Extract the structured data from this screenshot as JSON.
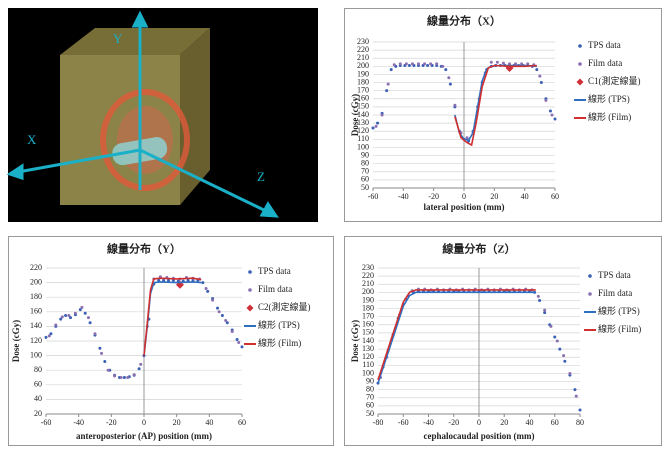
{
  "image_panel": {
    "axis_labels": {
      "y": "Y",
      "x": "X",
      "z": "Z"
    }
  },
  "chart_data": [
    {
      "type": "scatter",
      "title": "線量分布（X）",
      "x_label": "lateral position (mm)",
      "y_label": "Dose (cGy)",
      "xlim": [
        -60,
        60
      ],
      "xticks": [
        -60,
        -40,
        -20,
        0,
        20,
        40,
        60
      ],
      "ylim": [
        50,
        230
      ],
      "yticks": [
        50,
        60,
        70,
        80,
        90,
        100,
        110,
        120,
        130,
        140,
        150,
        160,
        170,
        180,
        190,
        200,
        210,
        220,
        230
      ],
      "grid": true,
      "legend": "right",
      "series": [
        {
          "name": "TPS data",
          "style": "dots",
          "color": "#3a5fb5",
          "x": [
            -60,
            -57,
            -54,
            -51,
            -48,
            -45,
            -42,
            -39,
            -36,
            -33,
            -30,
            -27,
            -24,
            -21,
            -18,
            -15,
            -12,
            -9,
            -6,
            -3,
            0,
            3,
            6,
            9,
            12,
            15,
            18,
            21,
            24,
            27,
            30,
            33,
            36,
            39,
            42,
            45,
            48,
            51,
            54,
            57,
            60
          ],
          "values": [
            124,
            130,
            142,
            170,
            196,
            200,
            201,
            201,
            201,
            201,
            201,
            201,
            201,
            201,
            201,
            200,
            196,
            178,
            150,
            120,
            110,
            108,
            120,
            150,
            180,
            196,
            200,
            201,
            201,
            201,
            201,
            201,
            201,
            201,
            201,
            200,
            196,
            180,
            160,
            145,
            135
          ]
        },
        {
          "name": "Film data",
          "style": "dots",
          "color": "#8a6fb0",
          "x": [
            -58,
            -54,
            -50,
            -46,
            -42,
            -38,
            -34,
            -30,
            -26,
            -22,
            -18,
            -14,
            -10,
            -6,
            -2,
            2,
            6,
            10,
            14,
            18,
            22,
            26,
            30,
            34,
            38,
            42,
            46,
            50,
            54,
            58
          ],
          "values": [
            126,
            140,
            178,
            202,
            203,
            203,
            203,
            203,
            203,
            203,
            203,
            200,
            186,
            152,
            118,
            112,
            118,
            160,
            192,
            205,
            205,
            204,
            203,
            203,
            203,
            203,
            202,
            188,
            158,
            140
          ]
        },
        {
          "name": "C1(測定線量)",
          "style": "diamond",
          "color": "#d0303a",
          "x": [
            30
          ],
          "values": [
            198
          ]
        },
        {
          "name": "線形 (TPS)",
          "style": "line",
          "color": "#2f6fc0",
          "x": [
            -6,
            -3,
            0,
            3,
            6,
            9,
            12,
            15,
            18,
            24,
            30,
            36,
            42,
            48
          ],
          "values": [
            140,
            118,
            110,
            109,
            118,
            150,
            182,
            197,
            200,
            201,
            201,
            201,
            201,
            200
          ]
        },
        {
          "name": "線形 (Film)",
          "style": "line",
          "color": "#d03030",
          "x": [
            -6,
            -2,
            2,
            5,
            8,
            12,
            16,
            20,
            30,
            40,
            48
          ],
          "values": [
            138,
            112,
            106,
            103,
            130,
            175,
            198,
            201,
            200,
            200,
            201
          ]
        }
      ]
    },
    {
      "type": "scatter",
      "title": "線量分布（Y）",
      "x_label": "anteroposterior (AP) position (mm)",
      "y_label": "Dose (cGy)",
      "xlim": [
        -60,
        60
      ],
      "xticks": [
        -60,
        -40,
        -20,
        0,
        20,
        40,
        60
      ],
      "ylim": [
        20,
        220
      ],
      "yticks": [
        20,
        40,
        60,
        80,
        100,
        120,
        140,
        160,
        180,
        200,
        220
      ],
      "grid": true,
      "legend": "right",
      "series": [
        {
          "name": "TPS data",
          "style": "dots",
          "color": "#3a5fb5",
          "x": [
            -60,
            -57,
            -54,
            -51,
            -48,
            -45,
            -42,
            -39,
            -36,
            -33,
            -30,
            -27,
            -24,
            -21,
            -18,
            -15,
            -12,
            -9,
            -6,
            -3,
            0,
            3,
            6,
            9,
            12,
            15,
            18,
            21,
            24,
            27,
            30,
            33,
            36,
            39,
            42,
            45,
            48,
            51,
            54,
            57,
            60
          ],
          "values": [
            125,
            130,
            140,
            150,
            155,
            152,
            156,
            163,
            158,
            145,
            128,
            110,
            92,
            80,
            73,
            70,
            70,
            71,
            73,
            82,
            100,
            150,
            198,
            203,
            203,
            203,
            203,
            202,
            202,
            203,
            203,
            203,
            200,
            188,
            178,
            165,
            155,
            145,
            135,
            122,
            112
          ]
        },
        {
          "name": "Film data",
          "style": "dots",
          "color": "#8a6fb0",
          "x": [
            -58,
            -54,
            -50,
            -46,
            -42,
            -38,
            -34,
            -30,
            -26,
            -22,
            -18,
            -14,
            -10,
            -6,
            -2,
            2,
            6,
            10,
            14,
            18,
            22,
            26,
            30,
            34,
            38,
            42,
            46,
            50,
            54,
            58
          ],
          "values": [
            127,
            142,
            153,
            155,
            158,
            166,
            152,
            130,
            103,
            80,
            72,
            70,
            70,
            74,
            88,
            140,
            205,
            208,
            207,
            206,
            205,
            207,
            206,
            205,
            192,
            176,
            160,
            148,
            133,
            118
          ]
        },
        {
          "name": "C2(測定線量)",
          "style": "diamond",
          "color": "#d0303a",
          "x": [
            22
          ],
          "values": [
            197
          ]
        },
        {
          "name": "線形 (TPS)",
          "style": "line",
          "color": "#2f6fc0",
          "x": [
            0,
            2,
            4,
            6,
            10,
            20,
            30,
            35
          ],
          "values": [
            100,
            140,
            185,
            200,
            201,
            200,
            201,
            200
          ]
        },
        {
          "name": "線形 (Film)",
          "style": "line",
          "color": "#d03030",
          "x": [
            0,
            2,
            4,
            6,
            10,
            20,
            30,
            35
          ],
          "values": [
            100,
            145,
            190,
            205,
            206,
            205,
            206,
            204
          ]
        }
      ]
    },
    {
      "type": "scatter",
      "title": "線量分布（Z）",
      "x_label": "cephalocaudal position (mm)",
      "y_label": "Dose (cGy)",
      "xlim": [
        -80,
        80
      ],
      "xticks": [
        -80,
        -60,
        -40,
        -20,
        0,
        20,
        40,
        60,
        80
      ],
      "ylim": [
        50,
        230
      ],
      "yticks": [
        50,
        60,
        70,
        80,
        90,
        100,
        110,
        120,
        130,
        140,
        150,
        160,
        170,
        180,
        190,
        200,
        210,
        220,
        230
      ],
      "grid": true,
      "legend": "right",
      "series": [
        {
          "name": "TPS data",
          "style": "dots",
          "color": "#3a5fb5",
          "x": [
            -80,
            -76,
            -72,
            -68,
            -64,
            -60,
            -56,
            -52,
            -48,
            -44,
            -40,
            -36,
            -32,
            -28,
            -24,
            -20,
            -16,
            -12,
            -8,
            -4,
            0,
            4,
            8,
            12,
            16,
            20,
            24,
            28,
            32,
            36,
            40,
            44,
            48,
            52,
            56,
            60,
            64,
            68,
            72,
            76,
            80
          ],
          "values": [
            88,
            108,
            128,
            148,
            168,
            185,
            196,
            200,
            201,
            201,
            201,
            201,
            201,
            201,
            201,
            201,
            201,
            201,
            201,
            201,
            201,
            201,
            201,
            201,
            201,
            201,
            201,
            201,
            201,
            201,
            201,
            200,
            190,
            175,
            160,
            145,
            130,
            115,
            98,
            80,
            55
          ]
        },
        {
          "name": "Film data",
          "style": "dots",
          "color": "#8a6fb0",
          "x": [
            -78,
            -73,
            -68,
            -63,
            -58,
            -53,
            -48,
            -43,
            -38,
            -33,
            -28,
            -23,
            -18,
            -13,
            -8,
            -3,
            2,
            7,
            12,
            17,
            22,
            27,
            32,
            37,
            42,
            47,
            52,
            57,
            62,
            67,
            72,
            77
          ],
          "values": [
            95,
            120,
            147,
            172,
            192,
            202,
            204,
            204,
            203,
            204,
            203,
            204,
            203,
            204,
            203,
            204,
            203,
            204,
            203,
            204,
            203,
            204,
            203,
            204,
            203,
            195,
            178,
            158,
            140,
            122,
            100,
            72
          ]
        },
        {
          "name": "線形 (TPS)",
          "style": "line",
          "color": "#2f6fc0",
          "x": [
            -80,
            -70,
            -60,
            -55,
            -50,
            -40,
            -20,
            0,
            20,
            40,
            45
          ],
          "values": [
            88,
            135,
            183,
            196,
            200,
            200,
            200,
            200,
            200,
            200,
            200
          ]
        },
        {
          "name": "線形 (Film)",
          "style": "line",
          "color": "#d03030",
          "x": [
            -80,
            -70,
            -60,
            -55,
            -50,
            -40,
            -20,
            0,
            20,
            40,
            45
          ],
          "values": [
            92,
            140,
            188,
            200,
            203,
            203,
            203,
            203,
            203,
            203,
            203
          ]
        }
      ]
    }
  ]
}
